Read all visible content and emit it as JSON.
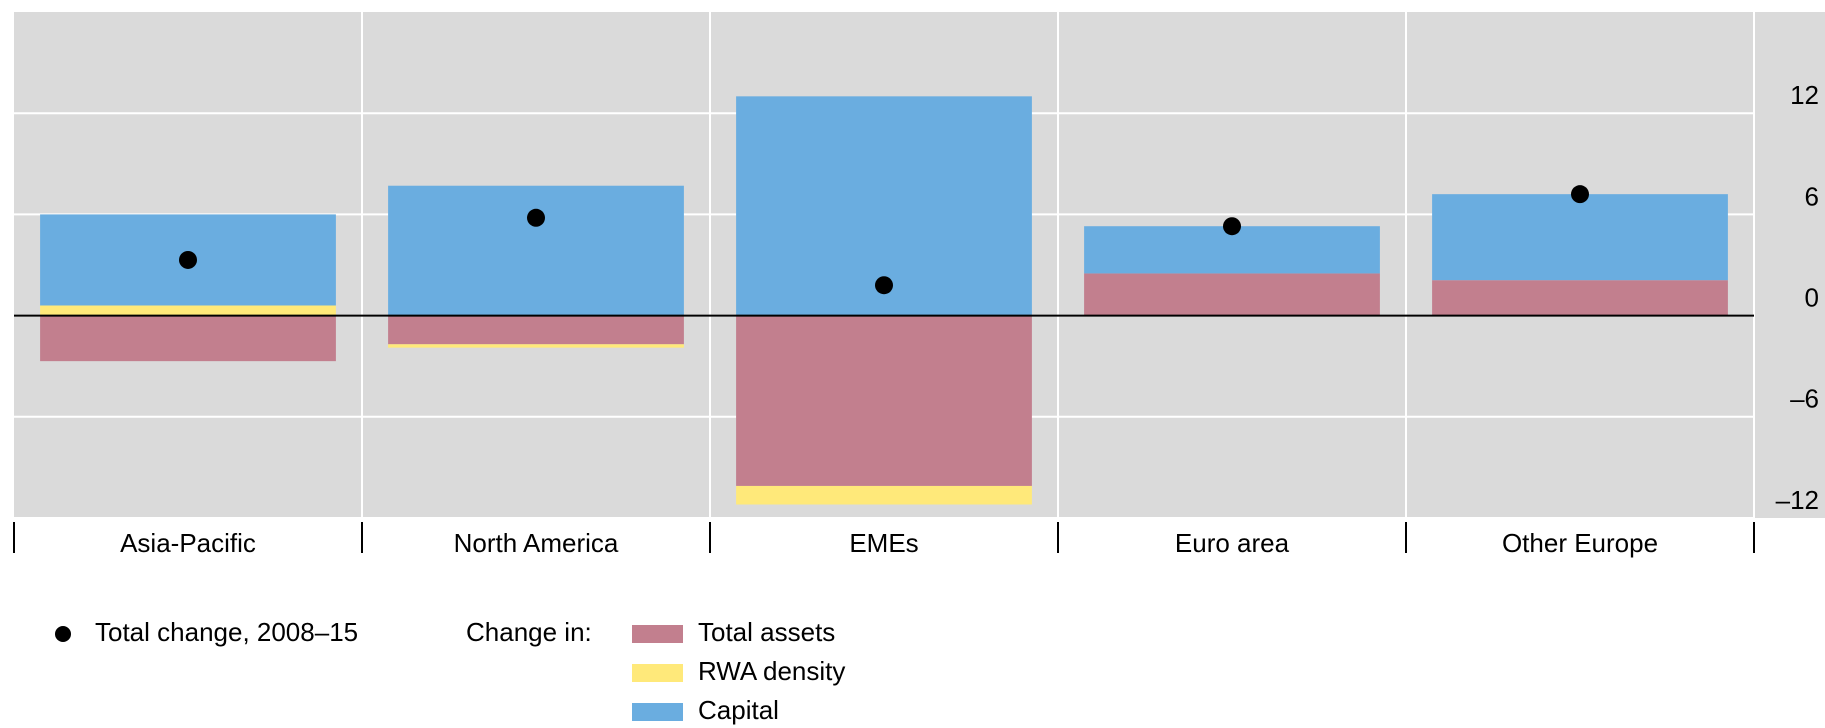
{
  "chart_data": {
    "type": "bar",
    "stacked": true,
    "categories": [
      "Asia-Pacific",
      "North America",
      "EMEs",
      "Euro area",
      "Other Europe"
    ],
    "series": [
      {
        "name": "Total assets",
        "color": "#c27f8e",
        "values": [
          -2.7,
          -1.7,
          -10.1,
          2.5,
          2.1
        ]
      },
      {
        "name": "RWA density",
        "color": "#ffe97a",
        "values": [
          0.6,
          -0.2,
          -1.1,
          0,
          0
        ]
      },
      {
        "name": "Capital",
        "color": "#6aade0",
        "values": [
          5.4,
          7.7,
          13.0,
          2.8,
          5.1
        ]
      }
    ],
    "total": {
      "name": "Total change, 2008–15",
      "color": "#000000",
      "values": [
        3.3,
        5.8,
        1.8,
        5.3,
        7.2
      ]
    },
    "legend_label": "Change in:",
    "ylim": [
      -12,
      18
    ],
    "yticks": [
      {
        "value": -12,
        "label": "–12"
      },
      {
        "value": -6,
        "label": "–6"
      },
      0,
      6,
      12
    ],
    "grid": true
  }
}
